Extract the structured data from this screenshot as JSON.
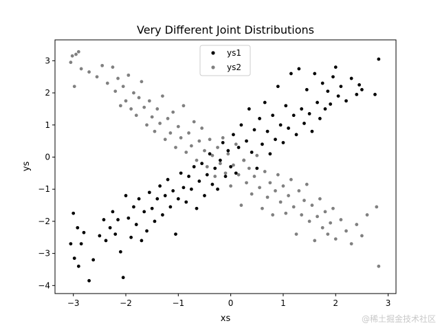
{
  "chart_data": {
    "type": "scatter",
    "title": "Very Different Joint Distributions",
    "xlabel": "xs",
    "ylabel": "ys",
    "xlim": [
      -3.35,
      3.15
    ],
    "ylim": [
      -4.25,
      3.65
    ],
    "xticks": [
      -3,
      -2,
      -1,
      0,
      1,
      2,
      3
    ],
    "yticks": [
      -4,
      -3,
      -2,
      -1,
      0,
      1,
      2,
      3
    ],
    "grid": false,
    "legend": "top-center",
    "series": [
      {
        "name": "ys1",
        "color": "#000000",
        "points": [
          [
            -3.05,
            -2.7
          ],
          [
            -3.0,
            -1.75
          ],
          [
            -2.98,
            -3.15
          ],
          [
            -2.92,
            -2.2
          ],
          [
            -2.9,
            -3.4
          ],
          [
            -2.85,
            -2.7
          ],
          [
            -2.8,
            -2.35
          ],
          [
            -2.7,
            -3.85
          ],
          [
            -2.62,
            -3.2
          ],
          [
            -2.5,
            -2.45
          ],
          [
            -2.42,
            -1.95
          ],
          [
            -2.38,
            -2.6
          ],
          [
            -2.3,
            -2.2
          ],
          [
            -2.25,
            -1.7
          ],
          [
            -2.2,
            -2.4
          ],
          [
            -2.15,
            -1.95
          ],
          [
            -2.1,
            -2.95
          ],
          [
            -2.05,
            -3.75
          ],
          [
            -2.0,
            -1.2
          ],
          [
            -1.95,
            -1.9
          ],
          [
            -1.9,
            -2.5
          ],
          [
            -1.85,
            -1.55
          ],
          [
            -1.8,
            -2.1
          ],
          [
            -1.75,
            -1.3
          ],
          [
            -1.7,
            -2.6
          ],
          [
            -1.65,
            -1.7
          ],
          [
            -1.6,
            -2.3
          ],
          [
            -1.55,
            -1.1
          ],
          [
            -1.5,
            -1.6
          ],
          [
            -1.45,
            -2.0
          ],
          [
            -1.4,
            -1.3
          ],
          [
            -1.35,
            -0.9
          ],
          [
            -1.3,
            -1.8
          ],
          [
            -1.25,
            -1.2
          ],
          [
            -1.2,
            -0.7
          ],
          [
            -1.15,
            -1.55
          ],
          [
            -1.1,
            -1.05
          ],
          [
            -1.05,
            -2.4
          ],
          [
            -1.0,
            -1.3
          ],
          [
            -0.95,
            -0.5
          ],
          [
            -0.9,
            -0.95
          ],
          [
            -0.85,
            -1.4
          ],
          [
            -0.8,
            -0.6
          ],
          [
            -0.75,
            -1.0
          ],
          [
            -0.7,
            -0.3
          ],
          [
            -0.65,
            -1.6
          ],
          [
            -0.6,
            -0.75
          ],
          [
            -0.55,
            -0.2
          ],
          [
            -0.5,
            -1.2
          ],
          [
            -0.45,
            -0.55
          ],
          [
            -0.4,
            0.1
          ],
          [
            -0.35,
            -0.85
          ],
          [
            -0.3,
            -0.35
          ],
          [
            -0.25,
            -1.0
          ],
          [
            -0.2,
            -0.1
          ],
          [
            -0.15,
            0.45
          ],
          [
            -0.1,
            -0.6
          ],
          [
            -0.05,
            0.2
          ],
          [
            0.0,
            -0.3
          ],
          [
            0.05,
            0.7
          ],
          [
            0.1,
            -0.5
          ],
          [
            0.15,
            0.3
          ],
          [
            0.2,
            1.0
          ],
          [
            0.25,
            -0.1
          ],
          [
            0.3,
            0.5
          ],
          [
            0.35,
            1.5
          ],
          [
            0.4,
            0.15
          ],
          [
            0.45,
            0.85
          ],
          [
            0.5,
            -0.35
          ],
          [
            0.55,
            1.2
          ],
          [
            0.6,
            0.4
          ],
          [
            0.65,
            1.7
          ],
          [
            0.7,
            0.8
          ],
          [
            0.75,
            0.1
          ],
          [
            0.8,
            1.3
          ],
          [
            0.85,
            0.55
          ],
          [
            0.9,
            2.2
          ],
          [
            0.95,
            1.0
          ],
          [
            1.0,
            0.45
          ],
          [
            1.05,
            1.6
          ],
          [
            1.1,
            0.9
          ],
          [
            1.15,
            2.6
          ],
          [
            1.2,
            1.3
          ],
          [
            1.25,
            0.7
          ],
          [
            1.3,
            2.75
          ],
          [
            1.35,
            1.5
          ],
          [
            1.4,
            1.05
          ],
          [
            1.45,
            2.1
          ],
          [
            1.5,
            1.35
          ],
          [
            1.55,
            0.8
          ],
          [
            1.6,
            2.6
          ],
          [
            1.65,
            1.7
          ],
          [
            1.7,
            1.2
          ],
          [
            1.75,
            2.3
          ],
          [
            1.8,
            1.5
          ],
          [
            1.85,
            2.05
          ],
          [
            1.9,
            1.65
          ],
          [
            1.95,
            2.5
          ],
          [
            2.0,
            2.8
          ],
          [
            2.05,
            1.9
          ],
          [
            2.1,
            2.2
          ],
          [
            2.2,
            1.75
          ],
          [
            2.3,
            2.45
          ],
          [
            2.4,
            1.95
          ],
          [
            2.45,
            2.25
          ],
          [
            2.5,
            2.1
          ],
          [
            2.75,
            1.95
          ],
          [
            2.82,
            3.05
          ]
        ]
      },
      {
        "name": "ys2",
        "color": "#808080",
        "points": [
          [
            -3.05,
            2.95
          ],
          [
            -3.02,
            3.15
          ],
          [
            -2.98,
            2.2
          ],
          [
            -2.95,
            3.2
          ],
          [
            -2.9,
            3.28
          ],
          [
            -2.85,
            2.75
          ],
          [
            -2.7,
            2.65
          ],
          [
            -2.55,
            2.5
          ],
          [
            -2.45,
            2.85
          ],
          [
            -2.35,
            2.3
          ],
          [
            -2.25,
            2.8
          ],
          [
            -2.2,
            2.05
          ],
          [
            -2.15,
            2.45
          ],
          [
            -2.1,
            1.6
          ],
          [
            -2.05,
            2.2
          ],
          [
            -2.0,
            1.75
          ],
          [
            -1.95,
            2.55
          ],
          [
            -1.9,
            1.5
          ],
          [
            -1.85,
            2.0
          ],
          [
            -1.8,
            1.3
          ],
          [
            -1.75,
            1.85
          ],
          [
            -1.7,
            2.35
          ],
          [
            -1.65,
            1.55
          ],
          [
            -1.6,
            1.0
          ],
          [
            -1.55,
            1.75
          ],
          [
            -1.5,
            1.25
          ],
          [
            -1.45,
            0.8
          ],
          [
            -1.4,
            1.5
          ],
          [
            -1.35,
            1.05
          ],
          [
            -1.3,
            1.9
          ],
          [
            -1.25,
            0.55
          ],
          [
            -1.2,
            1.2
          ],
          [
            -1.15,
            0.75
          ],
          [
            -1.1,
            1.4
          ],
          [
            -1.05,
            0.3
          ],
          [
            -1.0,
            0.95
          ],
          [
            -0.95,
            0.6
          ],
          [
            -0.9,
            1.6
          ],
          [
            -0.85,
            0.15
          ],
          [
            -0.8,
            0.75
          ],
          [
            -0.75,
            0.35
          ],
          [
            -0.7,
            1.1
          ],
          [
            -0.65,
            -0.1
          ],
          [
            -0.6,
            0.5
          ],
          [
            -0.55,
            0.9
          ],
          [
            -0.5,
            0.2
          ],
          [
            -0.45,
            -0.3
          ],
          [
            -0.4,
            0.55
          ],
          [
            -0.35,
            0.05
          ],
          [
            -0.3,
            -0.6
          ],
          [
            -0.25,
            0.3
          ],
          [
            -0.2,
            -0.2
          ],
          [
            -0.15,
            0.6
          ],
          [
            -0.1,
            -0.5
          ],
          [
            -0.05,
            0.1
          ],
          [
            0.0,
            -0.9
          ],
          [
            0.05,
            -0.25
          ],
          [
            0.1,
            0.4
          ],
          [
            0.15,
            -0.55
          ],
          [
            0.2,
            -1.5
          ],
          [
            0.25,
            -0.1
          ],
          [
            0.3,
            -0.8
          ],
          [
            0.35,
            -0.35
          ],
          [
            0.4,
            -1.15
          ],
          [
            0.45,
            -0.6
          ],
          [
            0.5,
            0.05
          ],
          [
            0.55,
            -0.95
          ],
          [
            0.6,
            -1.6
          ],
          [
            0.65,
            -0.45
          ],
          [
            0.7,
            -1.25
          ],
          [
            0.75,
            -0.8
          ],
          [
            0.8,
            -1.8
          ],
          [
            0.85,
            -1.05
          ],
          [
            0.9,
            -0.55
          ],
          [
            0.95,
            -1.4
          ],
          [
            1.0,
            -0.9
          ],
          [
            1.05,
            -1.75
          ],
          [
            1.1,
            -1.2
          ],
          [
            1.15,
            -0.7
          ],
          [
            1.2,
            -1.55
          ],
          [
            1.25,
            -2.4
          ],
          [
            1.3,
            -1.05
          ],
          [
            1.35,
            -1.8
          ],
          [
            1.4,
            -1.35
          ],
          [
            1.45,
            -0.85
          ],
          [
            1.5,
            -2.0
          ],
          [
            1.55,
            -1.5
          ],
          [
            1.6,
            -2.6
          ],
          [
            1.65,
            -1.85
          ],
          [
            1.7,
            -1.3
          ],
          [
            1.75,
            -2.2
          ],
          [
            1.8,
            -1.7
          ],
          [
            1.85,
            -2.4
          ],
          [
            1.9,
            -2.05
          ],
          [
            1.95,
            -1.6
          ],
          [
            2.0,
            -2.55
          ],
          [
            2.1,
            -1.95
          ],
          [
            2.2,
            -2.3
          ],
          [
            2.3,
            -2.7
          ],
          [
            2.4,
            -2.1
          ],
          [
            2.5,
            -2.45
          ],
          [
            2.6,
            -1.8
          ],
          [
            2.78,
            -1.55
          ],
          [
            2.82,
            -3.4
          ]
        ]
      }
    ]
  },
  "watermark": "@稀土掘金技术社区"
}
